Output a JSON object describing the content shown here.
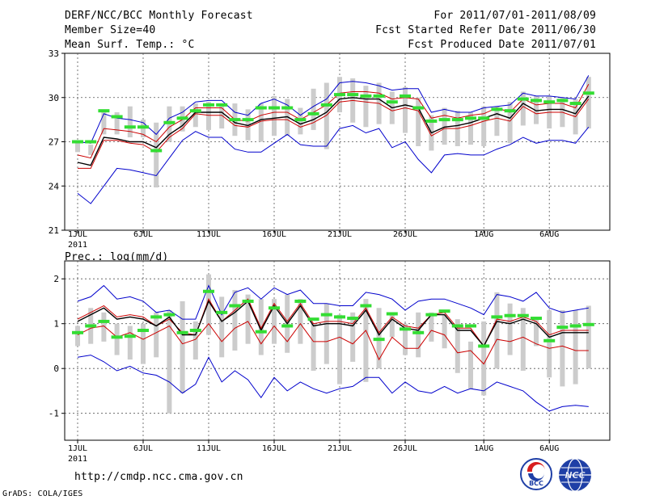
{
  "header": {
    "title": "DERF/NCC/BCC Monthly Forecast",
    "member_size": "Member Size=40",
    "variable": "Mean Surf. Temp.: °C",
    "period": "For 2011/07/01-2011/08/09",
    "started": "Fcst Started Refer Date 2011/06/30",
    "produced": "Fcst Produced Date 2011/07/01"
  },
  "footer": {
    "url": "http://cmdp.ncc.cma.gov.cn",
    "credit": "GrADS: COLA/IGES",
    "logo_bcc": "BCC",
    "logo_ncc": "NCC"
  },
  "colors": {
    "envelope": "#0000cc",
    "mean": "#000000",
    "secondary": "#cc0000",
    "box": "#cccccc",
    "marker": "#33dd33"
  },
  "chart_data": [
    {
      "type": "line",
      "title": "Mean Surf. Temp.: °C",
      "xlabel": "",
      "ylabel": "",
      "x_tick_labels": [
        "1JUL",
        "6JUL",
        "11JUL",
        "16JUL",
        "21JUL",
        "26JUL",
        "1AUG",
        "6AUG"
      ],
      "x_tick_days": [
        1,
        6,
        11,
        16,
        21,
        26,
        32,
        37
      ],
      "year_label": "2011",
      "ylim": [
        21,
        33
      ],
      "y_ticks": [
        21,
        24,
        27,
        30,
        33
      ],
      "grid": true,
      "days": [
        1,
        2,
        3,
        4,
        5,
        6,
        7,
        8,
        9,
        10,
        11,
        12,
        13,
        14,
        15,
        16,
        17,
        18,
        19,
        20,
        21,
        22,
        23,
        24,
        25,
        26,
        27,
        28,
        29,
        30,
        31,
        32,
        33,
        34,
        35,
        36,
        37,
        38,
        39,
        40
      ],
      "series": [
        {
          "name": "max",
          "color": "#0000cc",
          "values": [
            27.0,
            26.9,
            28.9,
            28.6,
            28.5,
            28.3,
            27.5,
            28.6,
            29.0,
            29.7,
            29.8,
            29.8,
            29.0,
            28.8,
            29.6,
            29.9,
            29.5,
            28.8,
            29.4,
            29.9,
            31.0,
            31.1,
            31.0,
            30.8,
            30.5,
            30.6,
            30.6,
            29.0,
            29.2,
            29.0,
            29.0,
            29.3,
            29.4,
            29.5,
            30.3,
            30.1,
            30.1,
            30.0,
            29.9,
            31.5
          ]
        },
        {
          "name": "upper",
          "color": "#cc0000",
          "values": [
            26.1,
            25.9,
            27.9,
            27.8,
            27.7,
            27.5,
            27.0,
            28.0,
            28.5,
            29.3,
            29.3,
            29.3,
            28.5,
            28.4,
            28.8,
            29.0,
            29.0,
            28.5,
            29.0,
            29.5,
            30.3,
            30.4,
            30.4,
            30.3,
            29.9,
            30.0,
            29.9,
            28.6,
            28.8,
            28.6,
            28.8,
            28.9,
            29.3,
            29.0,
            29.9,
            29.5,
            29.6,
            29.6,
            29.3,
            30.9
          ]
        },
        {
          "name": "mean",
          "color": "#000000",
          "values": [
            25.6,
            25.4,
            27.3,
            27.2,
            27.0,
            27.0,
            26.6,
            27.5,
            28.1,
            29.0,
            29.0,
            29.0,
            28.3,
            28.1,
            28.5,
            28.6,
            28.7,
            28.2,
            28.5,
            29.0,
            29.9,
            30.0,
            29.9,
            29.9,
            29.3,
            29.5,
            29.3,
            27.6,
            28.0,
            28.1,
            28.3,
            28.6,
            28.9,
            28.6,
            29.6,
            29.1,
            29.2,
            29.2,
            28.9,
            30.1
          ]
        },
        {
          "name": "lower",
          "color": "#cc0000",
          "values": [
            25.2,
            25.2,
            27.1,
            27.1,
            26.9,
            26.8,
            26.3,
            27.3,
            27.9,
            28.9,
            28.8,
            28.8,
            28.1,
            28.0,
            28.4,
            28.5,
            28.5,
            28.0,
            28.3,
            28.8,
            29.7,
            29.8,
            29.7,
            29.6,
            29.1,
            29.3,
            29.1,
            27.4,
            27.9,
            27.9,
            28.1,
            28.4,
            28.6,
            28.4,
            29.4,
            28.9,
            29.0,
            29.0,
            28.7,
            29.9
          ]
        },
        {
          "name": "min",
          "color": "#0000cc",
          "values": [
            23.5,
            22.8,
            24.0,
            25.2,
            25.1,
            24.9,
            24.7,
            25.9,
            27.1,
            27.7,
            27.3,
            27.3,
            26.5,
            26.3,
            26.3,
            26.9,
            27.5,
            26.8,
            26.7,
            26.7,
            27.9,
            28.1,
            27.6,
            27.9,
            26.6,
            27.0,
            25.8,
            24.9,
            26.1,
            26.2,
            26.1,
            26.1,
            26.5,
            26.8,
            27.3,
            26.9,
            27.1,
            27.1,
            26.9,
            28.0
          ]
        }
      ],
      "box_low": [
        26.3,
        26.1,
        27.5,
        27.5,
        27.3,
        27.3,
        23.9,
        27.0,
        27.7,
        28.0,
        27.8,
        27.9,
        27.4,
        27.1,
        27.0,
        27.4,
        27.4,
        27.5,
        27.8,
        26.5,
        29.0,
        28.3,
        28.0,
        28.2,
        28.2,
        27.6,
        26.7,
        26.4,
        26.8,
        26.7,
        26.8,
        26.7,
        27.4,
        26.9,
        28.1,
        28.2,
        27.9,
        28.0,
        27.5,
        27.9
      ],
      "box_high": [
        27.1,
        26.8,
        29.0,
        29.0,
        29.4,
        28.5,
        28.3,
        29.4,
        29.4,
        29.6,
        29.7,
        29.5,
        29.6,
        29.2,
        29.6,
        30.1,
        29.9,
        29.3,
        30.6,
        31.0,
        31.4,
        31.3,
        30.8,
        31.0,
        30.4,
        30.7,
        30.0,
        28.8,
        29.3,
        29.1,
        29.0,
        29.4,
        29.4,
        29.7,
        30.4,
        30.1,
        30.1,
        30.0,
        29.9,
        31.4
      ],
      "markers": [
        27.0,
        27.0,
        29.1,
        28.7,
        28.0,
        28.0,
        26.4,
        28.3,
        28.6,
        29.1,
        29.5,
        29.5,
        28.5,
        28.5,
        29.3,
        29.3,
        29.3,
        28.5,
        28.9,
        29.5,
        30.2,
        30.2,
        30.1,
        30.1,
        29.7,
        30.1,
        29.3,
        28.4,
        28.5,
        28.5,
        28.6,
        28.6,
        29.2,
        29.1,
        29.9,
        29.8,
        29.7,
        29.8,
        29.6,
        30.3
      ]
    },
    {
      "type": "line",
      "title": "Prec.: log(mm/d)",
      "xlabel": "",
      "ylabel": "",
      "x_tick_labels": [
        "1JUL",
        "6JUL",
        "11JUL",
        "16JUL",
        "21JUL",
        "26JUL",
        "1AUG",
        "6AUG"
      ],
      "x_tick_days": [
        1,
        6,
        11,
        16,
        21,
        26,
        32,
        37
      ],
      "year_label": "2011",
      "ylim": [
        -1.6,
        2.4
      ],
      "y_ticks": [
        -1,
        0,
        1,
        2
      ],
      "grid": true,
      "days": [
        1,
        2,
        3,
        4,
        5,
        6,
        7,
        8,
        9,
        10,
        11,
        12,
        13,
        14,
        15,
        16,
        17,
        18,
        19,
        20,
        21,
        22,
        23,
        24,
        25,
        26,
        27,
        28,
        29,
        30,
        31,
        32,
        33,
        34,
        35,
        36,
        37,
        38,
        39,
        40
      ],
      "series": [
        {
          "name": "max",
          "color": "#0000cc",
          "values": [
            1.5,
            1.6,
            1.85,
            1.55,
            1.6,
            1.5,
            1.25,
            1.3,
            1.1,
            1.1,
            1.85,
            1.2,
            1.7,
            1.8,
            1.55,
            1.8,
            1.65,
            1.75,
            1.45,
            1.45,
            1.4,
            1.4,
            1.7,
            1.65,
            1.55,
            1.3,
            1.5,
            1.55,
            1.55,
            1.45,
            1.35,
            1.2,
            1.65,
            1.6,
            1.5,
            1.7,
            1.35,
            1.25,
            1.3,
            1.35
          ]
        },
        {
          "name": "upper",
          "color": "#cc0000",
          "values": [
            1.1,
            1.25,
            1.4,
            1.15,
            1.2,
            1.15,
            0.95,
            1.1,
            0.8,
            0.75,
            1.55,
            1.05,
            1.3,
            1.55,
            0.9,
            1.45,
            1.05,
            1.45,
            1.0,
            1.05,
            1.05,
            1.0,
            1.35,
            0.8,
            1.15,
            0.95,
            0.9,
            1.2,
            1.25,
            0.9,
            0.9,
            0.5,
            1.1,
            1.05,
            1.15,
            1.05,
            0.75,
            0.85,
            0.85,
            0.85
          ]
        },
        {
          "name": "mean",
          "color": "#000000",
          "values": [
            1.05,
            1.2,
            1.35,
            1.1,
            1.15,
            1.1,
            0.95,
            1.15,
            0.75,
            0.75,
            1.5,
            1.05,
            1.25,
            1.5,
            0.85,
            1.4,
            1.0,
            1.4,
            0.95,
            1.0,
            1.0,
            0.95,
            1.3,
            0.75,
            1.1,
            0.9,
            0.85,
            1.2,
            1.2,
            0.85,
            0.85,
            0.5,
            1.05,
            1.0,
            1.1,
            1.0,
            0.7,
            0.8,
            0.8,
            0.8
          ]
        },
        {
          "name": "lower",
          "color": "#cc0000",
          "values": [
            0.75,
            0.9,
            0.95,
            0.7,
            0.8,
            0.65,
            0.8,
            0.95,
            0.55,
            0.65,
            1.0,
            0.6,
            0.9,
            1.05,
            0.55,
            0.95,
            0.6,
            1.0,
            0.6,
            0.6,
            0.7,
            0.55,
            0.85,
            0.2,
            0.7,
            0.45,
            0.45,
            0.85,
            0.75,
            0.35,
            0.4,
            0.1,
            0.65,
            0.6,
            0.7,
            0.55,
            0.45,
            0.5,
            0.4,
            0.4
          ]
        },
        {
          "name": "min",
          "color": "#0000cc",
          "values": [
            0.25,
            0.3,
            0.15,
            -0.05,
            0.05,
            -0.1,
            -0.15,
            -0.3,
            -0.55,
            -0.35,
            0.25,
            -0.3,
            -0.05,
            -0.25,
            -0.65,
            -0.2,
            -0.5,
            -0.3,
            -0.45,
            -0.55,
            -0.45,
            -0.4,
            -0.2,
            -0.2,
            -0.55,
            -0.3,
            -0.5,
            -0.55,
            -0.4,
            -0.55,
            -0.45,
            -0.5,
            -0.3,
            -0.4,
            -0.5,
            -0.75,
            -0.95,
            -0.85,
            -0.82,
            -0.85
          ]
        }
      ],
      "box_low": [
        0.5,
        0.55,
        0.6,
        0.3,
        0.2,
        0.1,
        0.25,
        -1.0,
        -0.55,
        0.2,
        0.75,
        0.25,
        0.4,
        0.55,
        0.3,
        0.55,
        0.35,
        0.55,
        -0.05,
        0.1,
        -0.35,
        0.15,
        -0.3,
        0.0,
        0.7,
        0.3,
        0.25,
        0.6,
        0.45,
        -0.1,
        -0.45,
        -0.6,
        0.0,
        0.3,
        -0.05,
        0.5,
        -0.2,
        -0.4,
        -0.35,
        0.0
      ],
      "box_high": [
        0.95,
        1.35,
        1.25,
        1.0,
        0.95,
        1.0,
        1.25,
        1.3,
        1.5,
        1.05,
        2.1,
        1.6,
        1.75,
        1.65,
        1.55,
        1.55,
        1.65,
        1.55,
        1.0,
        1.45,
        1.2,
        1.25,
        1.55,
        1.35,
        1.25,
        1.0,
        1.25,
        1.25,
        1.2,
        1.1,
        0.6,
        1.05,
        1.7,
        1.45,
        1.35,
        1.15,
        1.3,
        1.3,
        1.3,
        1.4
      ],
      "markers": [
        0.8,
        0.95,
        1.05,
        0.7,
        0.72,
        0.85,
        1.15,
        1.2,
        0.8,
        0.85,
        1.72,
        1.25,
        1.4,
        1.5,
        0.82,
        1.35,
        0.95,
        1.5,
        1.1,
        1.2,
        1.15,
        1.12,
        1.4,
        0.65,
        1.22,
        0.88,
        0.8,
        1.2,
        1.28,
        0.95,
        0.95,
        0.5,
        1.15,
        1.18,
        1.18,
        1.12,
        0.62,
        0.92,
        0.95,
        0.98
      ]
    }
  ]
}
